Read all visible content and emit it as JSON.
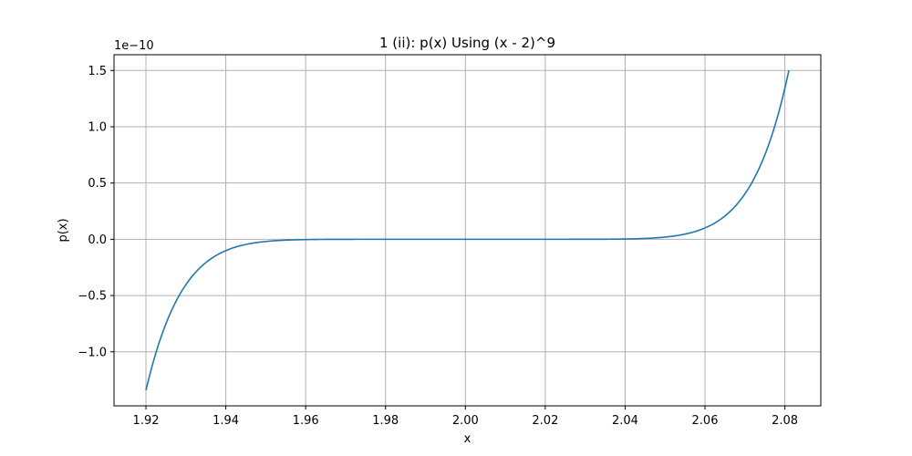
{
  "chart_data": {
    "type": "line",
    "title": "1 (ii): p(x) Using (x - 2)^9",
    "xlabel": "x",
    "ylabel": "p(x)",
    "y_offset_label": "1e−10",
    "xlim": [
      1.912,
      2.089
    ],
    "ylim": [
      -1.48,
      1.64
    ],
    "x_ticks": [
      1.92,
      1.94,
      1.96,
      1.98,
      2.0,
      2.02,
      2.04,
      2.06,
      2.08
    ],
    "x_tick_labels": [
      "1.92",
      "1.94",
      "1.96",
      "1.98",
      "2.00",
      "2.02",
      "2.04",
      "2.06",
      "2.08"
    ],
    "y_ticks": [
      -1.0,
      -0.5,
      0.0,
      0.5,
      1.0,
      1.5
    ],
    "y_tick_labels": [
      "−1.0",
      "−0.5",
      "0.0",
      "0.5",
      "1.0",
      "1.5"
    ],
    "grid": true,
    "series": [
      {
        "color": "#1f77b4",
        "function": "(x - 2)^9",
        "y_scale_exponent": -10,
        "x_start": 1.92,
        "x_end": 2.081
      }
    ]
  }
}
